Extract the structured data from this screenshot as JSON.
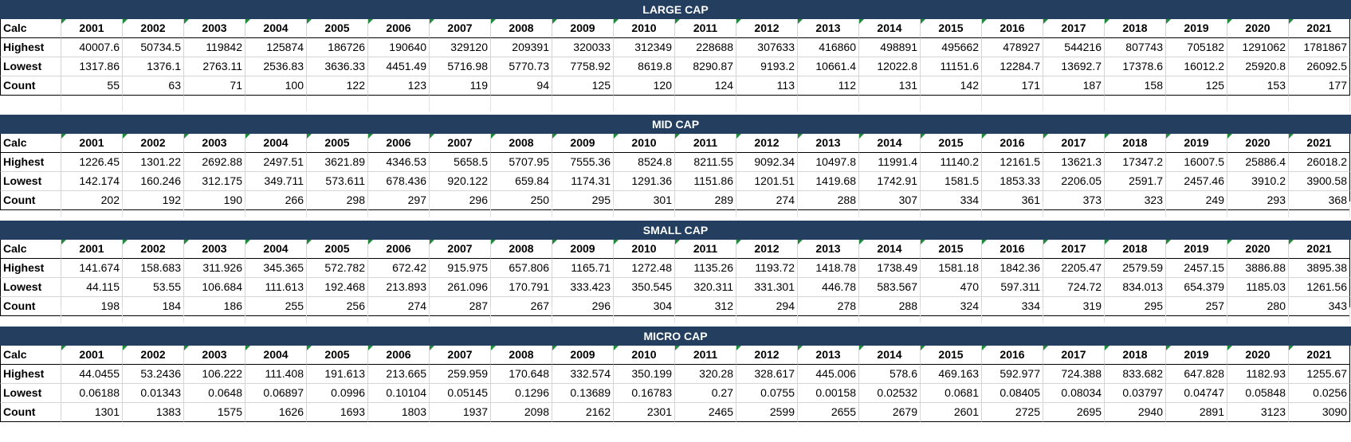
{
  "header_label": "Calc",
  "years": [
    "2001",
    "2002",
    "2003",
    "2004",
    "2005",
    "2006",
    "2007",
    "2008",
    "2009",
    "2010",
    "2011",
    "2012",
    "2013",
    "2014",
    "2015",
    "2016",
    "2017",
    "2018",
    "2019",
    "2020",
    "2021"
  ],
  "sections": [
    {
      "title": "LARGE CAP",
      "rows": [
        {
          "label": "Highest",
          "values": [
            "40007.6",
            "50734.5",
            "119842",
            "125874",
            "186726",
            "190640",
            "329120",
            "209391",
            "320033",
            "312349",
            "228688",
            "307633",
            "416860",
            "498891",
            "495662",
            "478927",
            "544216",
            "807743",
            "705182",
            "1291062",
            "1781867"
          ]
        },
        {
          "label": "Lowest",
          "values": [
            "1317.86",
            "1376.1",
            "2763.11",
            "2536.83",
            "3636.33",
            "4451.49",
            "5716.98",
            "5770.73",
            "7758.92",
            "8619.8",
            "8290.87",
            "9193.2",
            "10661.4",
            "12022.8",
            "11151.6",
            "12284.7",
            "13692.7",
            "17378.6",
            "16012.2",
            "25920.8",
            "26092.5"
          ]
        },
        {
          "label": "Count",
          "values": [
            "55",
            "63",
            "71",
            "100",
            "122",
            "123",
            "119",
            "94",
            "125",
            "120",
            "124",
            "113",
            "112",
            "131",
            "142",
            "171",
            "187",
            "158",
            "125",
            "153",
            "177"
          ]
        }
      ]
    },
    {
      "title": "MID CAP",
      "rows": [
        {
          "label": "Highest",
          "values": [
            "1226.45",
            "1301.22",
            "2692.88",
            "2497.51",
            "3621.89",
            "4346.53",
            "5658.5",
            "5707.95",
            "7555.36",
            "8524.8",
            "8211.55",
            "9092.34",
            "10497.8",
            "11991.4",
            "11140.2",
            "12161.5",
            "13621.3",
            "17347.2",
            "16007.5",
            "25886.4",
            "26018.2"
          ]
        },
        {
          "label": "Lowest",
          "values": [
            "142.174",
            "160.246",
            "312.175",
            "349.711",
            "573.611",
            "678.436",
            "920.122",
            "659.84",
            "1174.31",
            "1291.36",
            "1151.86",
            "1201.51",
            "1419.68",
            "1742.91",
            "1581.5",
            "1853.33",
            "2206.05",
            "2591.7",
            "2457.46",
            "3910.2",
            "3900.58"
          ]
        },
        {
          "label": "Count",
          "values": [
            "202",
            "192",
            "190",
            "266",
            "298",
            "297",
            "296",
            "250",
            "295",
            "301",
            "289",
            "274",
            "288",
            "307",
            "334",
            "361",
            "373",
            "323",
            "249",
            "293",
            "368"
          ]
        }
      ]
    },
    {
      "title": "SMALL CAP",
      "rows": [
        {
          "label": "Highest",
          "values": [
            "141.674",
            "158.683",
            "311.926",
            "345.365",
            "572.782",
            "672.42",
            "915.975",
            "657.806",
            "1165.71",
            "1272.48",
            "1135.26",
            "1193.72",
            "1418.78",
            "1738.49",
            "1581.18",
            "1842.36",
            "2205.47",
            "2579.59",
            "2457.15",
            "3886.88",
            "3895.38"
          ]
        },
        {
          "label": "Lowest",
          "values": [
            "44.115",
            "53.55",
            "106.684",
            "111.613",
            "192.468",
            "213.893",
            "261.096",
            "170.791",
            "333.423",
            "350.545",
            "320.311",
            "331.301",
            "446.78",
            "583.567",
            "470",
            "597.311",
            "724.72",
            "834.013",
            "654.379",
            "1185.03",
            "1261.56"
          ]
        },
        {
          "label": "Count",
          "values": [
            "198",
            "184",
            "186",
            "255",
            "256",
            "274",
            "287",
            "267",
            "296",
            "304",
            "312",
            "294",
            "278",
            "288",
            "324",
            "334",
            "319",
            "295",
            "257",
            "280",
            "343"
          ]
        }
      ]
    },
    {
      "title": "MICRO CAP",
      "rows": [
        {
          "label": "Highest",
          "values": [
            "44.0455",
            "53.2436",
            "106.222",
            "111.408",
            "191.613",
            "213.665",
            "259.959",
            "170.648",
            "332.574",
            "350.199",
            "320.28",
            "328.617",
            "445.006",
            "578.6",
            "469.163",
            "592.977",
            "724.388",
            "833.682",
            "647.828",
            "1182.93",
            "1255.67"
          ]
        },
        {
          "label": "Lowest",
          "values": [
            "0.06188",
            "0.01343",
            "0.0648",
            "0.06897",
            "0.0996",
            "0.10104",
            "0.05145",
            "0.1296",
            "0.13689",
            "0.16783",
            "0.27",
            "0.0755",
            "0.00158",
            "0.02532",
            "0.0681",
            "0.08405",
            "0.08034",
            "0.03797",
            "0.04747",
            "0.05848",
            "0.0256"
          ]
        },
        {
          "label": "Count",
          "values": [
            "1301",
            "1383",
            "1575",
            "1626",
            "1693",
            "1803",
            "1937",
            "2098",
            "2162",
            "2301",
            "2465",
            "2599",
            "2655",
            "2679",
            "2601",
            "2725",
            "2695",
            "2940",
            "2891",
            "3123",
            "3090"
          ]
        }
      ]
    }
  ]
}
